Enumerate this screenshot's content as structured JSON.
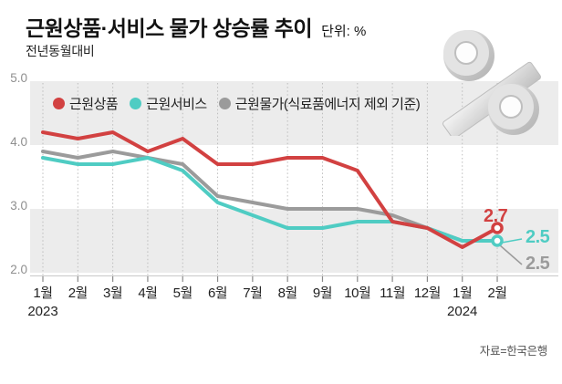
{
  "header": {
    "title": "근원상품·서비스 물가 상승률 추이",
    "unit_label": "단위: %",
    "subtitle": "전년동월대비"
  },
  "source": "자료=한국은행",
  "decoration": {
    "glyph": "percent-3d"
  },
  "chart_data": {
    "type": "line",
    "x_labels": [
      "1월",
      "2월",
      "3월",
      "4월",
      "5월",
      "6월",
      "7월",
      "8월",
      "9월",
      "10월",
      "11월",
      "12월",
      "1월",
      "2월"
    ],
    "x_year_labels": [
      {
        "index": 0,
        "label": "2023"
      },
      {
        "index": 12,
        "label": "2024"
      }
    ],
    "y_ticks": [
      "5.0",
      "4.0",
      "3.0",
      "2.0"
    ],
    "ylim": [
      2.0,
      5.0
    ],
    "grid": "dotted-vertical",
    "band_color": "#ececec",
    "legend_position": "top-inside",
    "series": [
      {
        "name": "근원상품",
        "color": "#d24141",
        "end_label": "2.7",
        "end_marker": true,
        "values": [
          4.2,
          4.1,
          4.2,
          3.9,
          4.1,
          3.7,
          3.7,
          3.8,
          3.8,
          3.6,
          2.8,
          2.7,
          2.4,
          2.7
        ]
      },
      {
        "name": "근원서비스",
        "color": "#4fccc3",
        "end_label": "2.5",
        "end_marker": true,
        "values": [
          3.8,
          3.7,
          3.7,
          3.8,
          3.6,
          3.1,
          2.9,
          2.7,
          2.7,
          2.8,
          2.8,
          2.7,
          2.5,
          2.5
        ]
      },
      {
        "name": "근원물가(식료품에너지 제외 기준)",
        "color": "#9b9b9b",
        "end_label": "2.5",
        "end_marker": false,
        "values": [
          3.9,
          3.8,
          3.9,
          3.8,
          3.7,
          3.2,
          3.1,
          3.0,
          3.0,
          3.0,
          2.9,
          2.7,
          2.5,
          2.5
        ]
      }
    ]
  }
}
